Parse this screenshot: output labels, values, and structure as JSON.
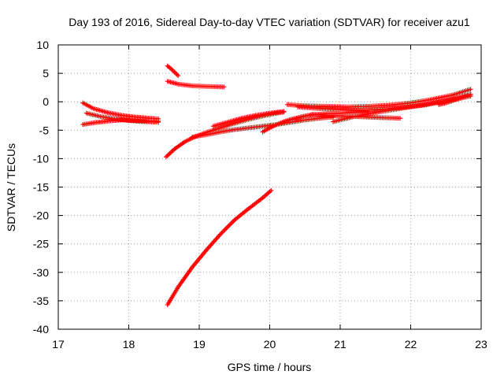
{
  "chart_data": {
    "type": "scatter",
    "title": "Day 193 of 2016, Sidereal Day-to-day VTEC variation (SDTVAR) for receiver azu1",
    "xlabel": "GPS time / hours",
    "ylabel": "SDTVAR / TECUs",
    "xlim": [
      17,
      23
    ],
    "ylim": [
      -40,
      10
    ],
    "xticks": [
      17,
      18,
      19,
      20,
      21,
      22,
      23
    ],
    "yticks": [
      -40,
      -35,
      -30,
      -25,
      -20,
      -15,
      -10,
      -5,
      0,
      5,
      10
    ],
    "grid": true,
    "marker": "plus",
    "color": "#ff0000",
    "series": [
      {
        "x": [
          17.35,
          17.5,
          17.7,
          17.9,
          18.1,
          18.3,
          18.42
        ],
        "y": [
          -0.2,
          -1.2,
          -1.9,
          -2.4,
          -2.7,
          -2.9,
          -3.0
        ]
      },
      {
        "x": [
          17.35,
          17.5,
          17.7,
          17.9,
          18.1,
          18.3,
          18.42
        ],
        "y": [
          -4.0,
          -3.7,
          -3.4,
          -3.2,
          -3.3,
          -3.4,
          -3.4
        ]
      },
      {
        "x": [
          17.4,
          17.6,
          17.8,
          18.0,
          18.2,
          18.42
        ],
        "y": [
          -2.0,
          -2.6,
          -3.0,
          -3.3,
          -3.5,
          -3.6
        ]
      },
      {
        "x": [
          18.55,
          18.6,
          18.65,
          18.7
        ],
        "y": [
          6.3,
          5.8,
          5.2,
          4.6
        ]
      },
      {
        "x": [
          18.55,
          18.7,
          18.9,
          19.1,
          19.35
        ],
        "y": [
          3.6,
          3.1,
          2.8,
          2.7,
          2.6
        ]
      },
      {
        "x": [
          18.53,
          18.65,
          18.8,
          18.95,
          19.1,
          19.3,
          19.5,
          19.7,
          19.9,
          20.1,
          20.2
        ],
        "y": [
          -9.7,
          -8.3,
          -7.0,
          -6.1,
          -5.4,
          -4.6,
          -3.8,
          -3.1,
          -2.5,
          -2.0,
          -1.8
        ]
      },
      {
        "x": [
          18.9,
          19.1,
          19.3,
          19.5,
          19.7,
          19.9,
          20.1,
          20.3,
          20.5,
          20.7,
          20.9
        ],
        "y": [
          -6.2,
          -5.8,
          -5.3,
          -4.9,
          -4.6,
          -4.3,
          -4.0,
          -3.6,
          -3.2,
          -2.9,
          -2.7
        ]
      },
      {
        "x": [
          19.2,
          19.4,
          19.6,
          19.8,
          20.0,
          20.2
        ],
        "y": [
          -4.3,
          -3.6,
          -2.9,
          -2.4,
          -2.0,
          -1.7
        ]
      },
      {
        "x": [
          19.9,
          20.0,
          20.1,
          20.2,
          20.3,
          20.4,
          20.5,
          20.6,
          20.8,
          21.0,
          21.2,
          21.4
        ],
        "y": [
          -5.3,
          -4.6,
          -4.0,
          -3.5,
          -3.1,
          -2.8,
          -2.5,
          -2.3,
          -2.1,
          -2.0,
          -1.9,
          -1.8
        ]
      },
      {
        "x": [
          20.25,
          20.5,
          20.8,
          21.1,
          21.4,
          21.7,
          22.0,
          22.3,
          22.6,
          22.85
        ],
        "y": [
          -0.5,
          -0.7,
          -0.8,
          -0.9,
          -0.8,
          -0.6,
          -0.2,
          0.4,
          1.2,
          2.2
        ]
      },
      {
        "x": [
          20.4,
          20.7,
          21.0,
          21.3,
          21.6,
          21.9,
          22.2,
          22.5,
          22.85
        ],
        "y": [
          -0.9,
          -1.2,
          -1.4,
          -1.5,
          -1.3,
          -1.0,
          -0.6,
          0.2,
          1.3
        ]
      },
      {
        "x": [
          20.6,
          20.8,
          21.0,
          21.2,
          21.4,
          21.6,
          21.85
        ],
        "y": [
          -2.2,
          -2.4,
          -2.5,
          -2.6,
          -2.7,
          -2.8,
          -2.9
        ]
      },
      {
        "x": [
          20.9,
          21.2,
          21.5,
          21.8,
          22.1,
          22.4,
          22.7,
          22.85
        ],
        "y": [
          -3.5,
          -2.6,
          -1.9,
          -1.3,
          -0.7,
          -0.1,
          0.6,
          1.0
        ]
      },
      {
        "x": [
          22.4,
          22.5,
          22.6,
          22.7,
          22.85
        ],
        "y": [
          -0.5,
          -0.2,
          0.2,
          0.6,
          1.3
        ]
      },
      {
        "x": [
          18.55,
          18.7,
          18.9,
          19.1,
          19.3,
          19.5,
          19.7,
          19.9,
          20.02
        ],
        "y": [
          -35.7,
          -32.6,
          -29.1,
          -26.1,
          -23.3,
          -20.8,
          -18.8,
          -16.9,
          -15.6
        ]
      }
    ]
  }
}
